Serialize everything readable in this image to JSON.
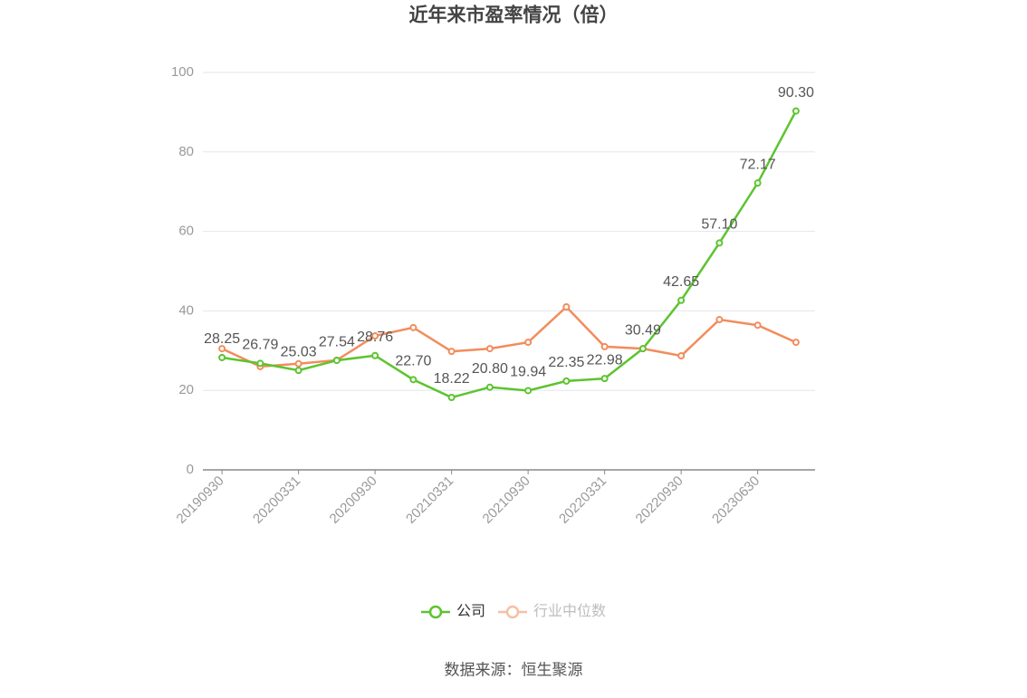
{
  "chart_data": {
    "type": "line",
    "title": "近年来市盈率情况（倍）",
    "categories": [
      "20190930",
      null,
      "20200331",
      null,
      "20200930",
      null,
      "20210331",
      null,
      "20210930",
      null,
      "20220331",
      null,
      "20220930",
      null,
      "20230630",
      null
    ],
    "series": [
      {
        "name": "公司",
        "color": "#5cc42f",
        "values": [
          28.25,
          26.79,
          25.03,
          27.54,
          28.76,
          22.7,
          18.22,
          20.8,
          19.94,
          22.35,
          22.98,
          30.49,
          42.65,
          57.1,
          72.17,
          90.3
        ],
        "value_labels": [
          "28.25",
          "26.79",
          "25.03",
          "27.54",
          "28.76",
          "22.70",
          "18.22",
          "20.80",
          "19.94",
          "22.35",
          "22.98",
          "30.49",
          "42.65",
          "57.10",
          "72.17",
          "90.30"
        ]
      },
      {
        "name": "行业中位数",
        "color": "#f28c5c",
        "values": [
          30.5,
          26.0,
          26.7,
          27.6,
          33.7,
          35.8,
          29.8,
          30.5,
          32.1,
          41.0,
          31.0,
          30.5,
          28.7,
          37.8,
          36.4,
          32.1
        ]
      }
    ],
    "ylim": [
      0,
      100
    ],
    "yticks": [
      0,
      20,
      40,
      60,
      80,
      100
    ],
    "grid": true,
    "legend": "bottom",
    "source": "数据来源：恒生聚源"
  }
}
